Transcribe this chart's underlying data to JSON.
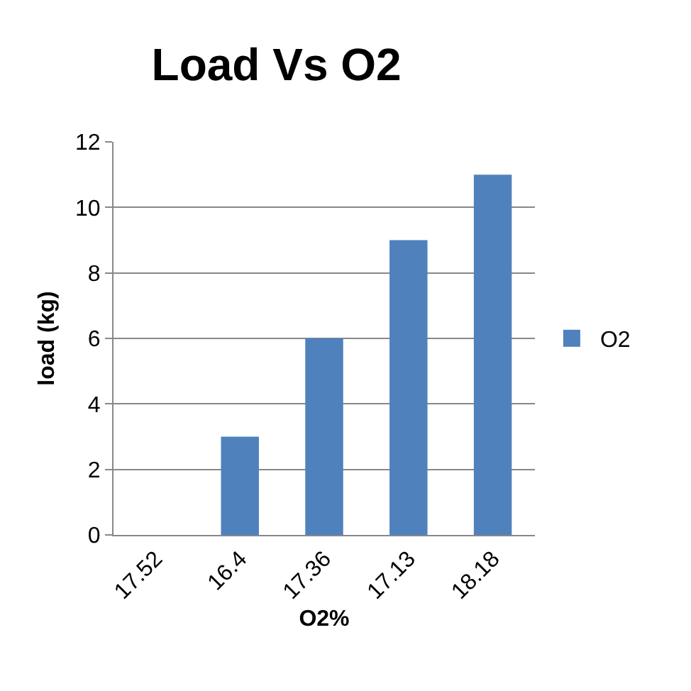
{
  "chart_data": {
    "type": "bar",
    "title": "Load Vs O2",
    "xlabel": "O2%",
    "ylabel": "load (kg)",
    "categories": [
      "17.52",
      "16.4",
      "17.36",
      "17.13",
      "18.18"
    ],
    "series": [
      {
        "name": "O2",
        "color": "#4f81bd",
        "values": [
          0,
          3,
          6,
          9,
          11
        ]
      }
    ],
    "ylim": [
      0,
      12
    ],
    "yticks": [
      0,
      2,
      4,
      6,
      8,
      10,
      12
    ],
    "grid": "y",
    "legend": "right"
  }
}
